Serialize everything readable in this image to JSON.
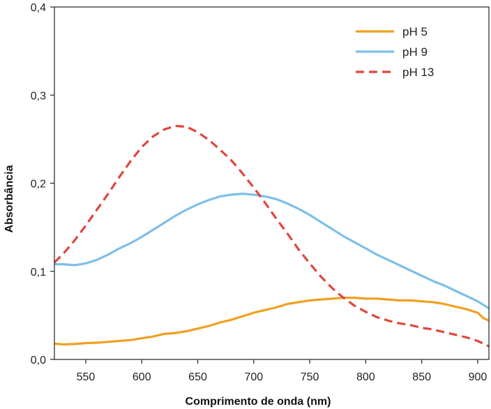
{
  "chart_data": {
    "type": "line",
    "title": "",
    "xlabel": "Comprimento de onda (nm)",
    "ylabel": "Absorbância",
    "xlim": [
      522,
      910
    ],
    "ylim": [
      0,
      0.4
    ],
    "xticks": [
      550,
      600,
      650,
      700,
      750,
      800,
      850,
      900
    ],
    "yticks": [
      0,
      0.1,
      0.2,
      0.3,
      0.4
    ],
    "ytick_labels": [
      "0,0",
      "0,1",
      "0,2",
      "0,3",
      "0,4"
    ],
    "grid": false,
    "legend_position": "top-right",
    "series": [
      {
        "name": "pH 5",
        "color": "#f0a020",
        "style": "solid",
        "x": [
          522,
          530,
          540,
          550,
          560,
          570,
          580,
          590,
          600,
          610,
          620,
          630,
          640,
          650,
          660,
          670,
          680,
          690,
          700,
          710,
          720,
          730,
          740,
          750,
          760,
          770,
          780,
          790,
          800,
          810,
          820,
          830,
          840,
          850,
          860,
          870,
          880,
          890,
          900,
          905,
          910
        ],
        "y": [
          0.018,
          0.017,
          0.0175,
          0.0185,
          0.019,
          0.02,
          0.021,
          0.022,
          0.024,
          0.026,
          0.029,
          0.03,
          0.032,
          0.035,
          0.038,
          0.042,
          0.045,
          0.049,
          0.053,
          0.056,
          0.059,
          0.063,
          0.065,
          0.067,
          0.068,
          0.069,
          0.07,
          0.07,
          0.069,
          0.069,
          0.068,
          0.067,
          0.067,
          0.066,
          0.065,
          0.063,
          0.06,
          0.057,
          0.053,
          0.047,
          0.044
        ]
      },
      {
        "name": "pH 9",
        "color": "#7dbfe8",
        "style": "solid",
        "x": [
          522,
          530,
          540,
          550,
          560,
          570,
          580,
          590,
          600,
          610,
          620,
          630,
          640,
          650,
          660,
          670,
          680,
          690,
          700,
          710,
          720,
          730,
          740,
          750,
          760,
          770,
          780,
          790,
          800,
          810,
          820,
          830,
          840,
          850,
          860,
          870,
          880,
          890,
          900,
          910
        ],
        "y": [
          0.108,
          0.108,
          0.107,
          0.109,
          0.113,
          0.119,
          0.126,
          0.132,
          0.139,
          0.147,
          0.155,
          0.163,
          0.17,
          0.176,
          0.181,
          0.185,
          0.187,
          0.188,
          0.187,
          0.185,
          0.182,
          0.177,
          0.171,
          0.164,
          0.156,
          0.148,
          0.14,
          0.133,
          0.126,
          0.119,
          0.113,
          0.107,
          0.101,
          0.095,
          0.089,
          0.084,
          0.078,
          0.072,
          0.066,
          0.058
        ]
      },
      {
        "name": "pH 13",
        "color": "#e0463c",
        "style": "dashed",
        "x": [
          522,
          530,
          540,
          550,
          560,
          570,
          580,
          590,
          600,
          610,
          620,
          630,
          640,
          650,
          660,
          670,
          680,
          690,
          700,
          710,
          720,
          730,
          740,
          750,
          760,
          770,
          780,
          790,
          800,
          810,
          820,
          830,
          840,
          850,
          860,
          870,
          880,
          890,
          900,
          910
        ],
        "y": [
          0.11,
          0.12,
          0.135,
          0.152,
          0.17,
          0.188,
          0.207,
          0.225,
          0.241,
          0.253,
          0.261,
          0.265,
          0.264,
          0.258,
          0.249,
          0.238,
          0.226,
          0.211,
          0.195,
          0.178,
          0.16,
          0.143,
          0.125,
          0.109,
          0.094,
          0.081,
          0.07,
          0.061,
          0.054,
          0.048,
          0.044,
          0.041,
          0.039,
          0.036,
          0.034,
          0.031,
          0.028,
          0.025,
          0.021,
          0.015
        ]
      }
    ]
  }
}
